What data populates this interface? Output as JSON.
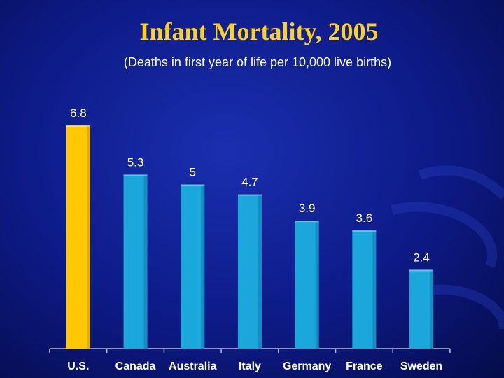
{
  "chart_data": {
    "type": "bar",
    "title": "Infant Mortality, 2005",
    "subtitle": "(Deaths in first year of life per 10,000 live births)",
    "categories": [
      "U.S.",
      "Canada",
      "Australia",
      "Italy",
      "Germany",
      "France",
      "Sweden"
    ],
    "values": [
      6.8,
      5.3,
      5,
      4.7,
      3.9,
      3.6,
      2.4
    ],
    "value_labels": [
      "6.8",
      "5.3",
      "5",
      "4.7",
      "3.9",
      "3.6",
      "2.4"
    ],
    "ylim": [
      0,
      7.25
    ],
    "xlabel": "",
    "ylabel": "",
    "grid": false,
    "legend": "none",
    "colors": {
      "highlight": "#ffc800",
      "highlight_dark": "#c99700",
      "bar": "#1ba7dc",
      "bar_dark": "#0f79ad",
      "axis": "#b8c0e8",
      "label": "#ffffff"
    }
  }
}
